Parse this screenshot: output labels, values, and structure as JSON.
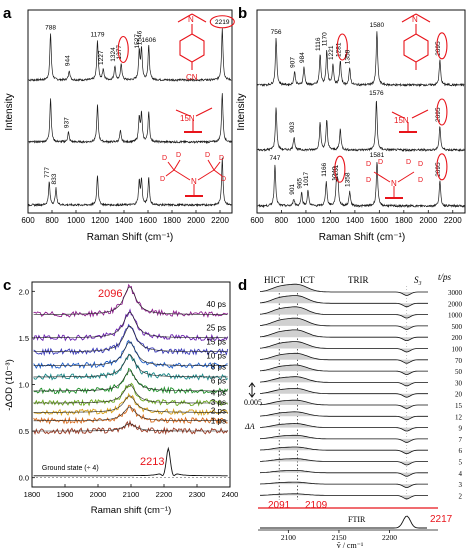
{
  "figure": {
    "colors": {
      "accent": "#e8141b",
      "ink": "#111111",
      "trace": "#1a1a1a",
      "gray": "#7a7a7a",
      "shade": "#c8c8c8"
    }
  },
  "chart_data": [
    {
      "panel": "a",
      "type": "line",
      "xlabel": "Raman Shift (cm⁻¹)",
      "ylabel": "Intensity",
      "xlim": [
        600,
        2300
      ],
      "xticks": [
        600,
        800,
        1000,
        1200,
        1400,
        1600,
        1800,
        2000,
        2200
      ],
      "grid": false,
      "traces": [
        {
          "peaks": [
            {
              "x": 788,
              "h": 0.85,
              "label": "788"
            },
            {
              "x": 944,
              "h": 0.18,
              "label": "944"
            },
            {
              "x": 1179,
              "h": 0.72,
              "label": "1179"
            },
            {
              "x": 1227,
              "h": 0.2,
              "label": "1227"
            },
            {
              "x": 1324,
              "h": 0.26,
              "label": "1324"
            },
            {
              "x": 1377,
              "h": 0.3,
              "label": "1377",
              "circled": true
            },
            {
              "x": 1527,
              "h": 0.5,
              "label": "1527"
            },
            {
              "x": 1546,
              "h": 0.56,
              "label": "1546"
            },
            {
              "x": 1606,
              "h": 0.62,
              "label": "1606"
            },
            {
              "x": 2219,
              "h": 0.95,
              "label": "2219",
              "circled": true
            }
          ]
        },
        {
          "peaks": [
            {
              "x": 788,
              "h": 0.8
            },
            {
              "x": 937,
              "h": 0.18,
              "label": "937"
            },
            {
              "x": 1179,
              "h": 0.68
            },
            {
              "x": 1370,
              "h": 0.2
            },
            {
              "x": 1527,
              "h": 0.45
            },
            {
              "x": 1546,
              "h": 0.5
            },
            {
              "x": 1606,
              "h": 0.55
            },
            {
              "x": 2219,
              "h": 0.9
            }
          ]
        },
        {
          "peaks": [
            {
              "x": 777,
              "h": 0.42,
              "label": "777"
            },
            {
              "x": 833,
              "h": 0.3,
              "label": "833"
            },
            {
              "x": 1179,
              "h": 0.55
            },
            {
              "x": 1527,
              "h": 0.42
            },
            {
              "x": 1546,
              "h": 0.45
            },
            {
              "x": 1606,
              "h": 0.5
            },
            {
              "x": 2219,
              "h": 0.85
            }
          ]
        }
      ],
      "molecule_labels": [
        "N",
        "CN",
        "15N",
        "N",
        "D",
        "D",
        "D",
        "D",
        "D",
        "D"
      ]
    },
    {
      "panel": "b",
      "type": "line",
      "xlabel": "Raman Shift (cm⁻¹)",
      "ylabel": "Intensity",
      "xlim": [
        600,
        2300
      ],
      "xticks": [
        600,
        800,
        1000,
        1200,
        1400,
        1600,
        1800,
        2000,
        2200
      ],
      "grid": false,
      "traces": [
        {
          "peaks": [
            {
              "x": 756,
              "h": 0.78,
              "label": "756"
            },
            {
              "x": 907,
              "h": 0.22,
              "label": "907"
            },
            {
              "x": 984,
              "h": 0.3,
              "label": "984"
            },
            {
              "x": 1116,
              "h": 0.5,
              "label": "1116"
            },
            {
              "x": 1170,
              "h": 0.58,
              "label": "1170"
            },
            {
              "x": 1221,
              "h": 0.35,
              "label": "1221"
            },
            {
              "x": 1281,
              "h": 0.4,
              "label": "1281",
              "circled": true
            },
            {
              "x": 1358,
              "h": 0.28,
              "label": "1358"
            },
            {
              "x": 1580,
              "h": 0.9,
              "label": "1580"
            },
            {
              "x": 2095,
              "h": 0.42,
              "label": "2095",
              "circled": true
            }
          ]
        },
        {
          "peaks": [
            {
              "x": 756,
              "h": 0.72
            },
            {
              "x": 903,
              "h": 0.22,
              "label": "903"
            },
            {
              "x": 1116,
              "h": 0.45
            },
            {
              "x": 1170,
              "h": 0.5
            },
            {
              "x": 1281,
              "h": 0.35
            },
            {
              "x": 1576,
              "h": 0.85,
              "label": "1576"
            },
            {
              "x": 2095,
              "h": 0.4,
              "label": "2095",
              "circled": true
            }
          ]
        },
        {
          "peaks": [
            {
              "x": 747,
              "h": 0.7,
              "label": "747"
            },
            {
              "x": 901,
              "h": 0.12,
              "label": "901"
            },
            {
              "x": 965,
              "h": 0.22,
              "label": "965"
            },
            {
              "x": 1017,
              "h": 0.26,
              "label": "1017"
            },
            {
              "x": 1166,
              "h": 0.42,
              "label": "1166"
            },
            {
              "x": 1249,
              "h": 0.35,
              "label": "1249"
            },
            {
              "x": 1261,
              "h": 0.38,
              "label": "1261",
              "circled": true
            },
            {
              "x": 1358,
              "h": 0.25,
              "label": "1358"
            },
            {
              "x": 1581,
              "h": 0.75,
              "label": "1581"
            },
            {
              "x": 2095,
              "h": 0.42,
              "label": "2095",
              "circled": true
            }
          ]
        }
      ],
      "molecule_labels": [
        "N",
        "15N",
        "N",
        "D",
        "D",
        "D",
        "D",
        "D",
        "D"
      ]
    },
    {
      "panel": "c",
      "type": "line",
      "xlabel": "Raman shift (cm⁻¹)",
      "ylabel": "-ΔOD (10⁻³)",
      "xlim": [
        1800,
        2400
      ],
      "ylim": [
        -0.1,
        2.1
      ],
      "xticks": [
        1800,
        1900,
        2000,
        2100,
        2200,
        2300,
        2400
      ],
      "yticks": [
        0.0,
        0.5,
        1.0,
        1.5,
        2.0
      ],
      "grid": false,
      "peak_labels": [
        "2096",
        "2213"
      ],
      "series": [
        {
          "name": "40 ps",
          "offset": 1.75,
          "amp": 0.3,
          "color": "#8e1e8e"
        },
        {
          "name": "25 ps",
          "offset": 1.5,
          "amp": 0.28,
          "color": "#6a1fb0"
        },
        {
          "name": "15 ps",
          "offset": 1.35,
          "amp": 0.28,
          "color": "#3a3ab8"
        },
        {
          "name": "10 ps",
          "offset": 1.2,
          "amp": 0.26,
          "color": "#1f5ec8"
        },
        {
          "name": "8 ps",
          "offset": 1.08,
          "amp": 0.24,
          "color": "#1c8a8a"
        },
        {
          "name": "6 ps",
          "offset": 0.93,
          "amp": 0.22,
          "color": "#1f8f2a"
        },
        {
          "name": "4 ps",
          "offset": 0.8,
          "amp": 0.2,
          "color": "#6aa81c"
        },
        {
          "name": "3 ps",
          "offset": 0.7,
          "amp": 0.18,
          "color": "#d8a31b"
        },
        {
          "name": "2 ps",
          "offset": 0.61,
          "amp": 0.15,
          "color": "#d86a1b"
        },
        {
          "name": "1 ps",
          "offset": 0.5,
          "amp": 0.08,
          "color": "#9b3a22"
        }
      ],
      "ground_state": {
        "name": "Ground state (÷ 4)",
        "peak": 2213,
        "amp": 0.3
      }
    },
    {
      "panel": "d",
      "type": "line",
      "xlabel": "ṽ / cm⁻¹",
      "xlim": [
        2070,
        2240
      ],
      "xticks": [
        2100,
        2150,
        2200
      ],
      "grid": false,
      "headers": {
        "hict": "HICT",
        "ict": "ICT",
        "trir": "TRIR",
        "s3": "S₃",
        "tps": "t/ps",
        "ftir": "FTIR",
        "scale": "0.005",
        "delta": "ΔA"
      },
      "delays": [
        "3000",
        "2000",
        "1000",
        "500",
        "200",
        "100",
        "70",
        "50",
        "30",
        "20",
        "15",
        "12",
        "9",
        "7",
        "6",
        "5",
        "4",
        "3",
        "2"
      ],
      "peaks": {
        "hict": 2091,
        "ict": 2109,
        "s3": 2217
      },
      "peak_labels": [
        "2091",
        "2109",
        "2217"
      ]
    }
  ]
}
